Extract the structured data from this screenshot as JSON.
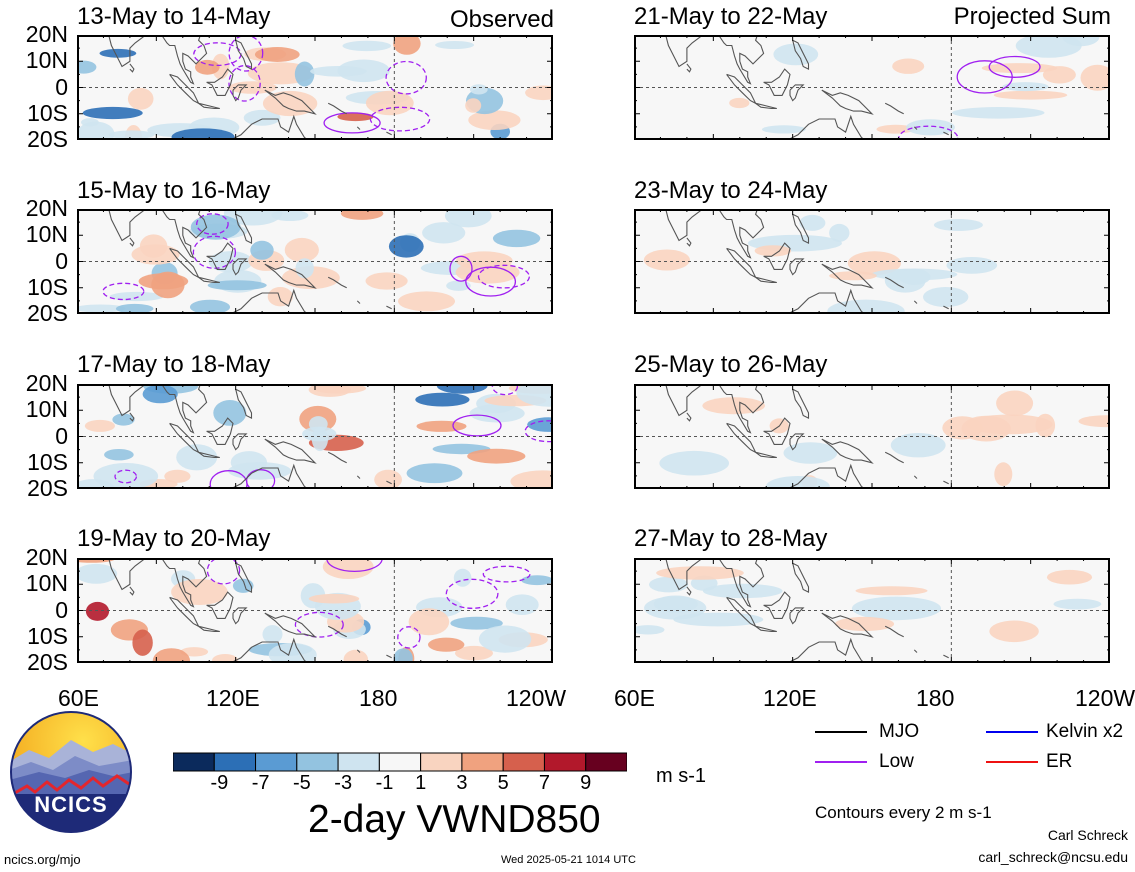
{
  "figure": {
    "variable_title": "2-day VWND850",
    "units": "m s-1",
    "contour_note": "Contours every 2 m s-1",
    "author": "Carl Schreck",
    "email": "carl_schreck@ncsu.edu",
    "website": "ncics.org/mjo",
    "timestamp": "Wed 2025-05-21 1014 UTC",
    "logo_text": "NCICS"
  },
  "columns": [
    {
      "label": "Observed"
    },
    {
      "label": "Projected Sum"
    }
  ],
  "panels": [
    {
      "title": "13-May to 14-May",
      "column": 0,
      "row": 0
    },
    {
      "title": "15-May to 16-May",
      "column": 0,
      "row": 1
    },
    {
      "title": "17-May to 18-May",
      "column": 0,
      "row": 2
    },
    {
      "title": "19-May to 20-May",
      "column": 0,
      "row": 3
    },
    {
      "title": "21-May to 22-May",
      "column": 1,
      "row": 0
    },
    {
      "title": "23-May to 24-May",
      "column": 1,
      "row": 1
    },
    {
      "title": "25-May to 26-May",
      "column": 1,
      "row": 2
    },
    {
      "title": "27-May to 28-May",
      "column": 1,
      "row": 3
    }
  ],
  "chart_data": {
    "type": "heatmap",
    "x_ticks": [
      "60E",
      "120E",
      "180",
      "120W"
    ],
    "y_ticks": [
      "20N",
      "10N",
      "0",
      "10S",
      "20S"
    ],
    "xlim_deg_east": [
      60,
      240
    ],
    "ylim_deg": [
      -20,
      20
    ],
    "colorbar": {
      "tick_labels": [
        "-9",
        "-7",
        "-5",
        "-3",
        "-1",
        "1",
        "3",
        "5",
        "7",
        "9"
      ],
      "colors": [
        "#0b2a5c",
        "#2c6fb6",
        "#5a9bd3",
        "#93c3e0",
        "#cfe4f0",
        "#f7f7f7",
        "#f9d4c0",
        "#f0a27f",
        "#d6604d",
        "#b2182b",
        "#67001f"
      ]
    },
    "legend": [
      {
        "name": "MJO",
        "color": "#000000"
      },
      {
        "name": "Kelvin x2",
        "color": "#0000ee"
      },
      {
        "name": "Low",
        "color": "#a020f0"
      },
      {
        "name": "ER",
        "color": "#ee1111"
      }
    ]
  }
}
